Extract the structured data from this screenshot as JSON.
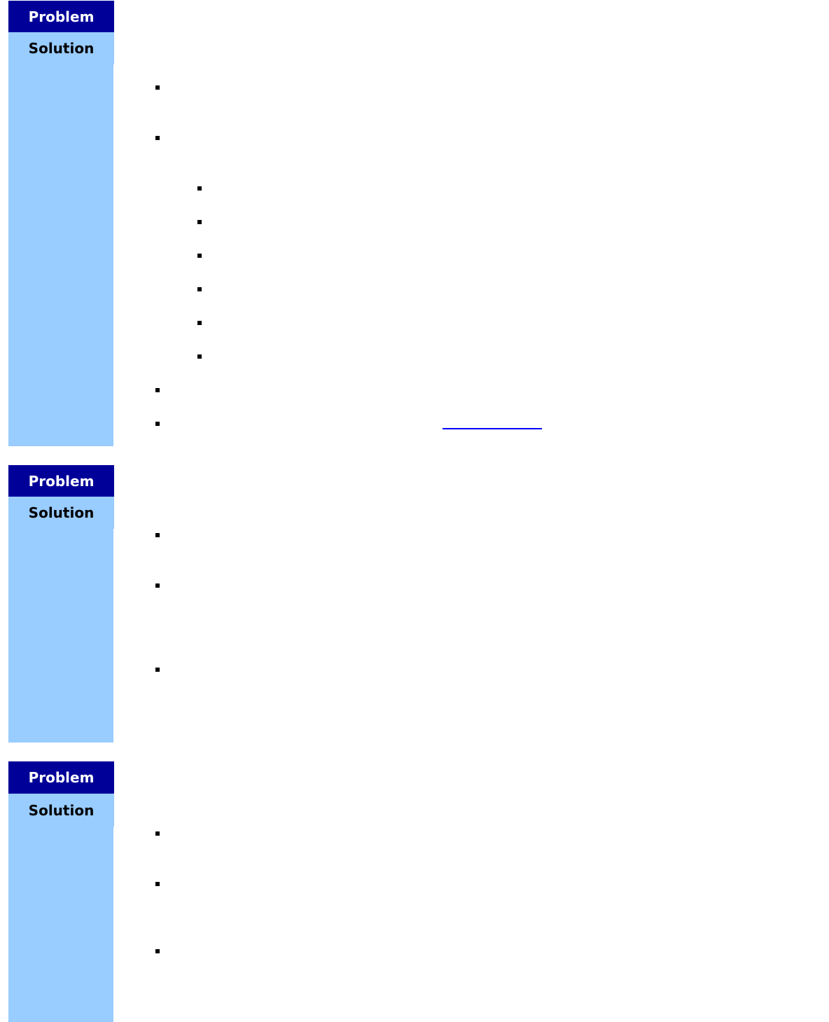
{
  "colors": {
    "problem_bg": "#000099",
    "solution_bg": "#99ccff",
    "link": "#0000ff"
  },
  "sections": [
    {
      "problem_label": "Problem",
      "solution_label": "Solution"
    },
    {
      "problem_label": "Problem",
      "solution_label": "Solution"
    },
    {
      "problem_label": "Problem",
      "solution_label": "Solution"
    }
  ]
}
